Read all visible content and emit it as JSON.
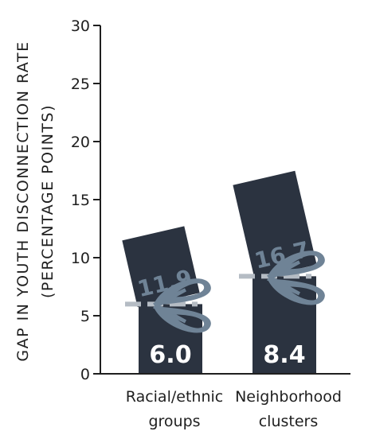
{
  "chart_data": {
    "type": "bar",
    "title": "",
    "ylabel": "GAP IN YOUTH DISCONNECTION RATE",
    "ylabel_sub": "(PERCENTAGE POINTS)",
    "ylim": [
      0,
      30
    ],
    "yticks": [
      0,
      5,
      10,
      15,
      20,
      25,
      30
    ],
    "categories": [
      "Racial/ethnic groups",
      "Neighborhood clusters"
    ],
    "category_lines": [
      [
        "Racial/ethnic",
        "groups"
      ],
      [
        "Neighborhood",
        "clusters"
      ]
    ],
    "values": [
      6.0,
      8.4
    ],
    "value_labels": [
      "6.0",
      "8.4"
    ],
    "previous_values": [
      11.9,
      16.7
    ],
    "previous_labels": [
      "11.9",
      "16.7"
    ],
    "grid": false,
    "colors": {
      "bar": "#2b3340",
      "cut_slab": "#2b3340",
      "cut_text": "#6f8396",
      "dashed_line": "#b5bcc4",
      "scissors": "#6f8396",
      "axis": "#1f1f1f"
    },
    "icons": [
      "scissors-icon"
    ]
  }
}
